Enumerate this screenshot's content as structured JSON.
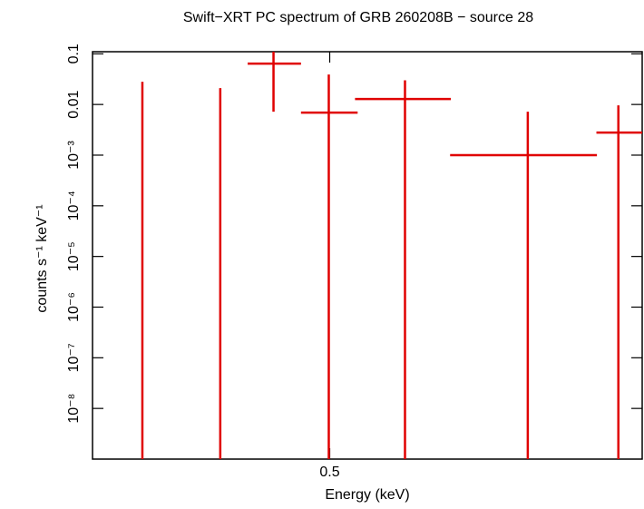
{
  "chart_data": {
    "type": "errorbar",
    "title": "Swift−XRT PC spectrum of GRB 260208B − source 28",
    "x_label": "Energy (keV)",
    "y_label": "counts s⁻¹ keV⁻¹",
    "xlog": true,
    "ylog": true,
    "xlim": [
      0.3,
      0.98
    ],
    "ylim": [
      1e-09,
      0.11
    ],
    "xticks": [
      0.5
    ],
    "yticks": [
      0.1,
      0.01,
      {
        "value": 0.001,
        "label": "10⁻³"
      },
      {
        "value": 0.0001,
        "label": "10⁻⁴"
      },
      {
        "value": 1e-05,
        "label": "10⁻⁵"
      },
      {
        "value": 1e-06,
        "label": "10⁻⁶"
      },
      {
        "value": 1e-07,
        "label": "10⁻⁷"
      },
      {
        "value": 1e-08,
        "label": "10⁻⁸"
      }
    ],
    "series": [
      {
        "color": "#e00000",
        "x": [
          0.334,
          0.395,
          0.443,
          0.499,
          0.588,
          0.766,
          0.931
        ],
        "x_low": [
          null,
          null,
          0.419,
          0.47,
          0.528,
          0.648,
          0.888
        ],
        "x_high": [
          null,
          null,
          0.47,
          0.531,
          0.649,
          0.889,
          0.98
        ],
        "y": [
          null,
          null,
          0.064,
          0.0069,
          0.0128,
          0.001,
          0.00279
        ],
        "y_low": [
          null,
          null,
          0.0072,
          null,
          null,
          null,
          null
        ],
        "y_high": [
          0.028,
          0.021,
          0.11,
          0.039,
          0.03,
          0.0072,
          0.0096
        ]
      }
    ]
  }
}
